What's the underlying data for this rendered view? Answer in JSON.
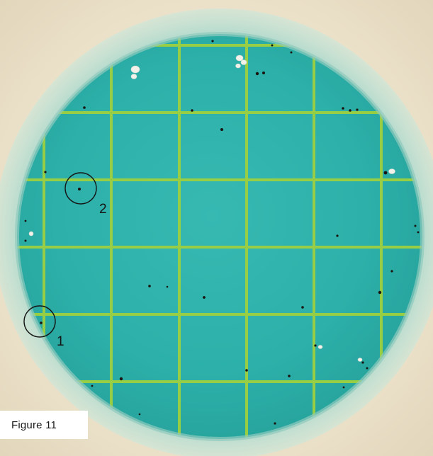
{
  "figure": {
    "caption": "Figure 11",
    "markers": [
      {
        "label": "1"
      },
      {
        "label": "2"
      }
    ]
  },
  "colors": {
    "background": "#efe6d2",
    "rim": "#a8d8cc",
    "rim_inner": "#8fcabd",
    "medium": "#2fb3ac",
    "grid": "#9ed040",
    "colony": "#1a1410",
    "bubble": "#f2f2ea",
    "marker": "#141414"
  }
}
